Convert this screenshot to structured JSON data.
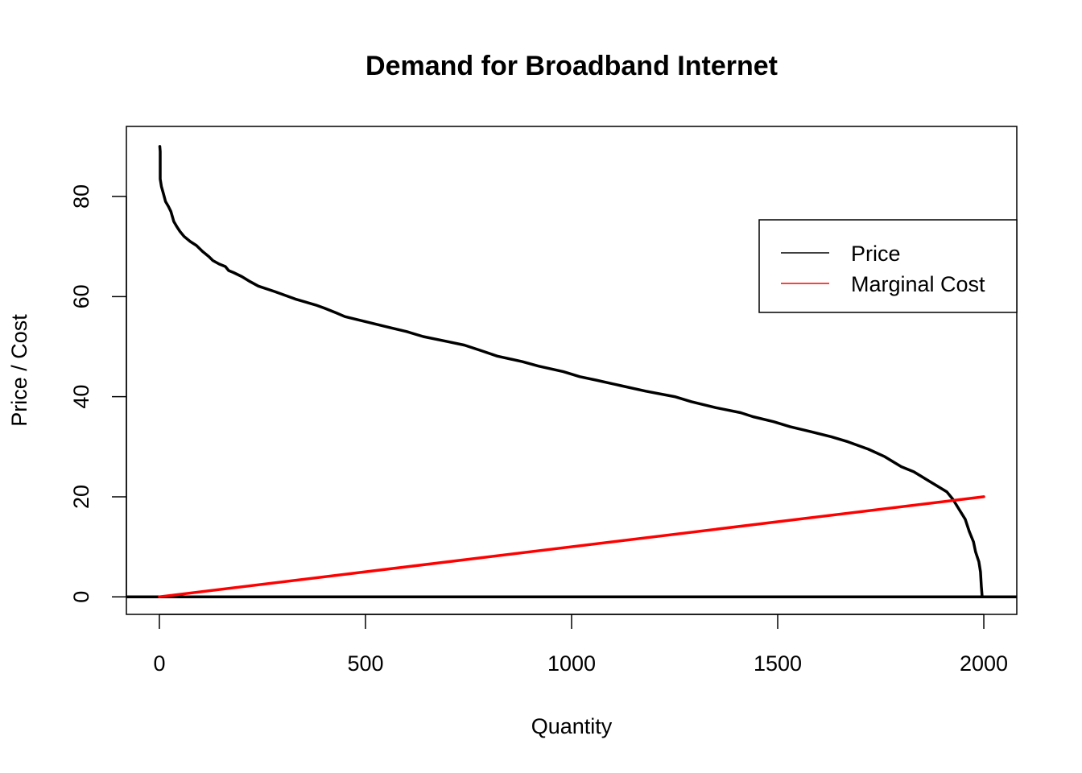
{
  "chart_data": {
    "type": "line",
    "title": "Demand for Broadband Internet",
    "xlabel": "Quantity",
    "ylabel": "Price / Cost",
    "xlim": [
      -80,
      2080
    ],
    "ylim": [
      -3.5,
      94
    ],
    "x_ticks": [
      0,
      500,
      1000,
      1500,
      2000
    ],
    "y_ticks": [
      0,
      20,
      40,
      60,
      80
    ],
    "grid": false,
    "legend_position": "top-right",
    "reference_line": {
      "y": 0,
      "color": "#000000"
    },
    "series": [
      {
        "name": "Price",
        "color": "#000000",
        "points": [
          [
            1,
            90
          ],
          [
            2,
            89
          ],
          [
            2,
            87
          ],
          [
            2,
            83.5
          ],
          [
            5,
            82
          ],
          [
            10,
            80.5
          ],
          [
            15,
            79
          ],
          [
            22,
            78
          ],
          [
            28,
            77
          ],
          [
            35,
            75
          ],
          [
            42,
            74
          ],
          [
            50,
            73
          ],
          [
            60,
            72
          ],
          [
            75,
            71
          ],
          [
            90,
            70.2
          ],
          [
            105,
            69
          ],
          [
            120,
            68
          ],
          [
            130,
            67.2
          ],
          [
            145,
            66.5
          ],
          [
            160,
            66
          ],
          [
            168,
            65.2
          ],
          [
            180,
            64.8
          ],
          [
            200,
            64
          ],
          [
            220,
            63
          ],
          [
            240,
            62.1
          ],
          [
            280,
            61
          ],
          [
            330,
            59.5
          ],
          [
            380,
            58.3
          ],
          [
            400,
            57.7
          ],
          [
            430,
            56.7
          ],
          [
            450,
            56
          ],
          [
            500,
            55
          ],
          [
            560,
            53.8
          ],
          [
            600,
            53
          ],
          [
            640,
            52
          ],
          [
            700,
            51
          ],
          [
            740,
            50.3
          ],
          [
            780,
            49.2
          ],
          [
            820,
            48.1
          ],
          [
            880,
            47
          ],
          [
            920,
            46.1
          ],
          [
            980,
            45
          ],
          [
            1020,
            44
          ],
          [
            1060,
            43.3
          ],
          [
            1120,
            42.2
          ],
          [
            1180,
            41.1
          ],
          [
            1250,
            40
          ],
          [
            1290,
            39
          ],
          [
            1350,
            37.8
          ],
          [
            1410,
            36.8
          ],
          [
            1440,
            36
          ],
          [
            1490,
            35
          ],
          [
            1530,
            34
          ],
          [
            1580,
            33
          ],
          [
            1630,
            32
          ],
          [
            1670,
            31
          ],
          [
            1720,
            29.5
          ],
          [
            1760,
            28
          ],
          [
            1800,
            26
          ],
          [
            1830,
            25
          ],
          [
            1860,
            23.5
          ],
          [
            1890,
            22
          ],
          [
            1910,
            21
          ],
          [
            1925,
            19.5
          ],
          [
            1940,
            17.5
          ],
          [
            1955,
            15.5
          ],
          [
            1965,
            13
          ],
          [
            1975,
            11
          ],
          [
            1980,
            9
          ],
          [
            1988,
            7
          ],
          [
            1992,
            5
          ],
          [
            1994,
            2
          ],
          [
            1996,
            0
          ]
        ]
      },
      {
        "name": "Marginal Cost",
        "color": "#ff0000",
        "points": [
          [
            0,
            0
          ],
          [
            2000,
            20
          ]
        ]
      }
    ]
  }
}
